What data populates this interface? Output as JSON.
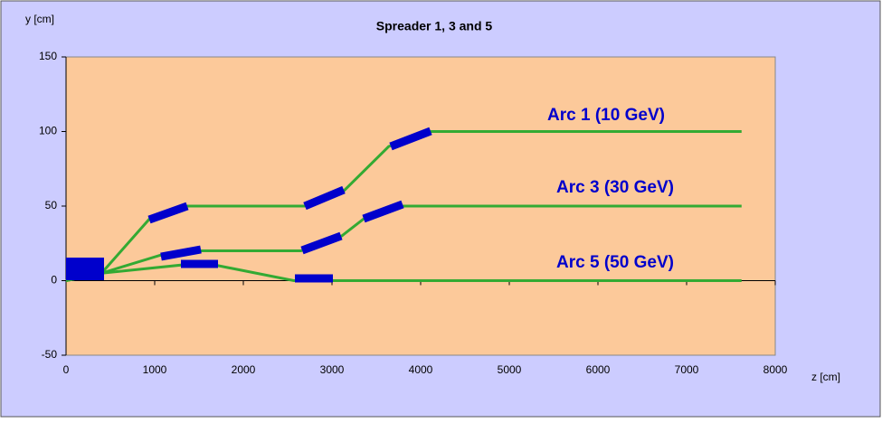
{
  "chart_data": {
    "type": "line",
    "title": "Spreader 1, 3 and 5",
    "y_label": "y [cm]",
    "x_label": "z [cm]",
    "xlim": [
      0,
      8000
    ],
    "xticks": [
      0,
      1000,
      2000,
      3000,
      4000,
      5000,
      6000,
      7000,
      8000
    ],
    "ylim": [
      -50,
      150
    ],
    "yticks": [
      -50,
      0,
      50,
      100,
      150
    ],
    "grid": false,
    "series": [
      {
        "name": "Arc 1 (10 GeV)",
        "color": "#33aa33",
        "x": [
          0,
          400,
          950,
          1370,
          2700,
          3130,
          3640,
          4120,
          7620
        ],
        "values": [
          0,
          5,
          42,
          50,
          50,
          60,
          90,
          100,
          100
        ]
      },
      {
        "name": "Arc 3 (30 GeV)",
        "color": "#33aa33",
        "x": [
          0,
          400,
          1060,
          1520,
          2650,
          3110,
          3370,
          3800,
          7620
        ],
        "values": [
          0,
          5,
          17,
          20,
          20,
          30,
          42,
          50,
          50
        ]
      },
      {
        "name": "Arc 5 (50 GeV)",
        "color": "#33aa33",
        "x": [
          0,
          400,
          1550,
          2570,
          7620
        ],
        "values": [
          0,
          5,
          12,
          0,
          0
        ]
      }
    ]
  }
}
